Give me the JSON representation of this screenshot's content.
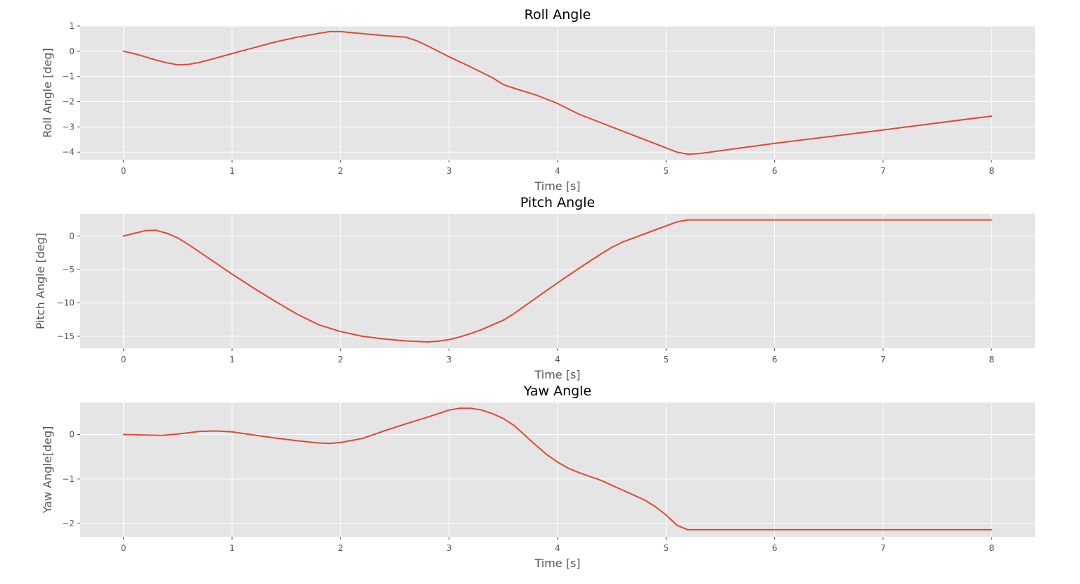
{
  "chart_data": [
    {
      "type": "line",
      "title": "Roll Angle",
      "xlabel": "Time [s]",
      "ylabel": "Roll Angle [deg]",
      "xlim": [
        -0.4,
        8.4
      ],
      "ylim": [
        -4.3,
        1.0
      ],
      "xticks": [
        0,
        1,
        2,
        3,
        4,
        5,
        6,
        7,
        8
      ],
      "xtick_labels": [
        "0",
        "1",
        "2",
        "3",
        "4",
        "5",
        "6",
        "7",
        "8"
      ],
      "yticks": [
        1,
        0,
        -1,
        -2,
        -3,
        -4
      ],
      "ytick_labels": [
        "1",
        "0",
        "−1",
        "−2",
        "−3",
        "−4"
      ],
      "grid": true,
      "line_color": "#e24a33",
      "background_color": "#e5e5e5",
      "series": [
        {
          "x": [
            0,
            0.1,
            0.2,
            0.3,
            0.4,
            0.5,
            0.6,
            0.7,
            0.8,
            0.9,
            1.0,
            1.2,
            1.4,
            1.6,
            1.8,
            1.9,
            2.0,
            2.2,
            2.4,
            2.6,
            2.7,
            2.8,
            3.0,
            3.2,
            3.4,
            3.5,
            3.6,
            3.8,
            4.0,
            4.2,
            4.5,
            4.8,
            5.0,
            5.1,
            5.2,
            5.3,
            6.0,
            7.0,
            8.0
          ],
          "y": [
            0,
            -0.1,
            -0.22,
            -0.35,
            -0.46,
            -0.54,
            -0.52,
            -0.44,
            -0.33,
            -0.21,
            -0.09,
            0.14,
            0.37,
            0.56,
            0.71,
            0.78,
            0.78,
            0.7,
            0.62,
            0.56,
            0.42,
            0.22,
            -0.22,
            -0.62,
            -1.05,
            -1.32,
            -1.47,
            -1.73,
            -2.07,
            -2.5,
            -3.0,
            -3.5,
            -3.83,
            -4.0,
            -4.08,
            -4.06,
            -3.65,
            -3.12,
            -2.57
          ]
        }
      ]
    },
    {
      "type": "line",
      "title": "Pitch Angle",
      "xlabel": "Time [s]",
      "ylabel": "Pitch Angle [deg]",
      "xlim": [
        -0.4,
        8.4
      ],
      "ylim": [
        -16.8,
        3.3
      ],
      "xticks": [
        0,
        1,
        2,
        3,
        4,
        5,
        6,
        7,
        8
      ],
      "xtick_labels": [
        "0",
        "1",
        "2",
        "3",
        "4",
        "5",
        "6",
        "7",
        "8"
      ],
      "yticks": [
        0,
        -5,
        -10,
        -15
      ],
      "ytick_labels": [
        "0",
        "−5",
        "−10",
        "−15"
      ],
      "grid": true,
      "line_color": "#e24a33",
      "background_color": "#e5e5e5",
      "series": [
        {
          "x": [
            0,
            0.1,
            0.2,
            0.3,
            0.4,
            0.5,
            0.6,
            0.8,
            1.0,
            1.2,
            1.4,
            1.6,
            1.8,
            2.0,
            2.2,
            2.4,
            2.6,
            2.8,
            2.9,
            3.0,
            3.1,
            3.2,
            3.3,
            3.5,
            3.6,
            3.8,
            4.0,
            4.2,
            4.4,
            4.5,
            4.6,
            4.8,
            5.0,
            5.1,
            5.2,
            6.0,
            7.0,
            8.0
          ],
          "y": [
            0,
            0.4,
            0.8,
            0.85,
            0.4,
            -0.3,
            -1.3,
            -3.5,
            -5.7,
            -7.8,
            -9.8,
            -11.7,
            -13.3,
            -14.3,
            -15.0,
            -15.4,
            -15.7,
            -15.85,
            -15.75,
            -15.5,
            -15.1,
            -14.6,
            -14.0,
            -12.6,
            -11.6,
            -9.3,
            -7.0,
            -4.8,
            -2.7,
            -1.7,
            -0.9,
            0.3,
            1.5,
            2.1,
            2.4,
            2.4,
            2.4,
            2.4
          ]
        }
      ]
    },
    {
      "type": "line",
      "title": "Yaw Angle",
      "xlabel": "Time [s]",
      "ylabel": "Yaw Angle[deg]",
      "xlim": [
        -0.4,
        8.4
      ],
      "ylim": [
        -2.3,
        0.72
      ],
      "xticks": [
        0,
        1,
        2,
        3,
        4,
        5,
        6,
        7,
        8
      ],
      "xtick_labels": [
        "0",
        "1",
        "2",
        "3",
        "4",
        "5",
        "6",
        "7",
        "8"
      ],
      "yticks": [
        0,
        -1,
        -2
      ],
      "ytick_labels": [
        "0",
        "−1",
        "−2"
      ],
      "grid": true,
      "line_color": "#e24a33",
      "background_color": "#e5e5e5",
      "series": [
        {
          "x": [
            0,
            0.2,
            0.35,
            0.5,
            0.7,
            0.85,
            1.0,
            1.2,
            1.4,
            1.6,
            1.8,
            1.9,
            2.0,
            2.2,
            2.4,
            2.6,
            2.8,
            3.0,
            3.1,
            3.2,
            3.3,
            3.4,
            3.5,
            3.6,
            3.7,
            3.8,
            3.9,
            4.0,
            4.1,
            4.2,
            4.4,
            4.6,
            4.8,
            4.9,
            5.0,
            5.1,
            5.2,
            6.0,
            7.0,
            8.0
          ],
          "y": [
            0,
            -0.01,
            -0.02,
            0.01,
            0.07,
            0.08,
            0.06,
            -0.01,
            -0.08,
            -0.14,
            -0.19,
            -0.2,
            -0.18,
            -0.09,
            0.08,
            0.24,
            0.39,
            0.55,
            0.59,
            0.59,
            0.55,
            0.47,
            0.36,
            0.2,
            -0.02,
            -0.24,
            -0.45,
            -0.62,
            -0.76,
            -0.86,
            -1.03,
            -1.25,
            -1.47,
            -1.62,
            -1.81,
            -2.04,
            -2.14,
            -2.14,
            -2.14,
            -2.14
          ]
        }
      ]
    }
  ]
}
